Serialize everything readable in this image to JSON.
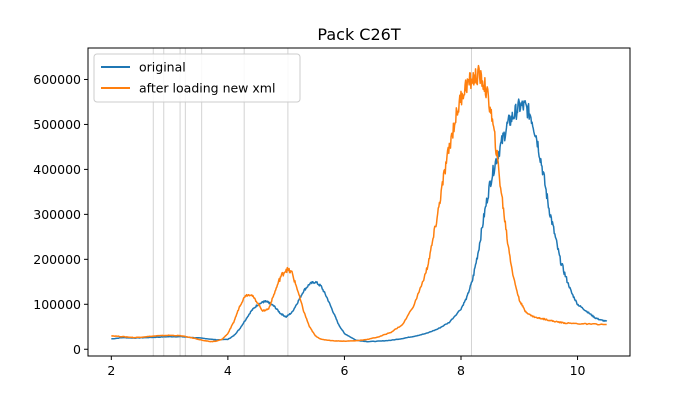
{
  "chart_data": {
    "type": "line",
    "title": "Pack C26T",
    "xlabel": "",
    "ylabel": "",
    "xlim": [
      1.6,
      10.9
    ],
    "ylim": [
      -15000,
      670000
    ],
    "x_ticks": [
      2,
      4,
      6,
      8,
      10
    ],
    "y_ticks": [
      0,
      100000,
      200000,
      300000,
      400000,
      500000,
      600000
    ],
    "x_tick_labels": [
      "2",
      "4",
      "6",
      "8",
      "10"
    ],
    "y_tick_labels": [
      "0",
      "100000",
      "200000",
      "300000",
      "400000",
      "500000",
      "600000"
    ],
    "grid": false,
    "legend_position": "upper left",
    "vertical_lines": {
      "x": [
        2.72,
        2.9,
        3.18,
        3.27,
        3.55,
        4.28,
        5.03,
        8.18
      ],
      "color": "#d3d3d3"
    },
    "series": [
      {
        "name": "original",
        "color": "#1f77b4",
        "x": [
          2.0,
          2.2,
          2.4,
          2.6,
          2.8,
          3.0,
          3.2,
          3.4,
          3.6,
          3.8,
          4.0,
          4.1,
          4.2,
          4.3,
          4.4,
          4.5,
          4.6,
          4.65,
          4.7,
          4.8,
          4.9,
          5.0,
          5.1,
          5.2,
          5.3,
          5.4,
          5.5,
          5.6,
          5.7,
          5.8,
          5.9,
          6.0,
          6.2,
          6.4,
          6.6,
          6.8,
          7.0,
          7.2,
          7.4,
          7.6,
          7.8,
          8.0,
          8.1,
          8.2,
          8.3,
          8.4,
          8.5,
          8.6,
          8.7,
          8.8,
          8.9,
          9.0,
          9.1,
          9.2,
          9.3,
          9.4,
          9.5,
          9.6,
          9.7,
          9.8,
          9.9,
          10.0,
          10.1,
          10.2,
          10.3,
          10.4,
          10.5
        ],
        "y": [
          23000,
          26000,
          25000,
          26000,
          27000,
          28000,
          28000,
          26000,
          24000,
          21000,
          22000,
          30000,
          45000,
          65000,
          85000,
          98000,
          105000,
          106000,
          104000,
          95000,
          80000,
          72000,
          82000,
          105000,
          130000,
          145000,
          150000,
          140000,
          115000,
          85000,
          55000,
          35000,
          20000,
          17000,
          18000,
          20000,
          24000,
          29000,
          35000,
          45000,
          60000,
          90000,
          115000,
          155000,
          220000,
          300000,
          370000,
          420000,
          460000,
          500000,
          520000,
          540000,
          540000,
          520000,
          470000,
          400000,
          320000,
          260000,
          200000,
          160000,
          125000,
          100000,
          90000,
          80000,
          70000,
          65000,
          62000
        ]
      },
      {
        "name": "after loading new xml",
        "color": "#ff7f0e",
        "x": [
          2.0,
          2.2,
          2.4,
          2.6,
          2.8,
          3.0,
          3.2,
          3.4,
          3.6,
          3.7,
          3.8,
          3.9,
          4.0,
          4.1,
          4.2,
          4.3,
          4.4,
          4.5,
          4.6,
          4.7,
          4.8,
          4.9,
          5.0,
          5.1,
          5.2,
          5.3,
          5.4,
          5.5,
          5.6,
          5.8,
          6.0,
          6.2,
          6.4,
          6.6,
          6.8,
          7.0,
          7.2,
          7.4,
          7.5,
          7.6,
          7.7,
          7.8,
          7.9,
          8.0,
          8.1,
          8.2,
          8.3,
          8.4,
          8.5,
          8.6,
          8.7,
          8.8,
          8.9,
          9.0,
          9.1,
          9.2,
          9.3,
          9.4,
          9.5,
          9.6,
          9.7,
          9.8,
          10.0,
          10.2,
          10.5
        ],
        "y": [
          30000,
          28000,
          26000,
          28000,
          30000,
          31000,
          30000,
          25000,
          19000,
          17000,
          18000,
          22000,
          35000,
          60000,
          95000,
          120000,
          122000,
          105000,
          85000,
          90000,
          125000,
          160000,
          178000,
          170000,
          130000,
          85000,
          50000,
          30000,
          22000,
          19000,
          18000,
          19000,
          22000,
          28000,
          38000,
          55000,
          100000,
          170000,
          230000,
          300000,
          380000,
          450000,
          510000,
          560000,
          590000,
          600000,
          610000,
          590000,
          540000,
          450000,
          340000,
          240000,
          160000,
          110000,
          85000,
          75000,
          70000,
          68000,
          65000,
          62000,
          60000,
          58000,
          57000,
          56000,
          55000
        ]
      }
    ]
  }
}
